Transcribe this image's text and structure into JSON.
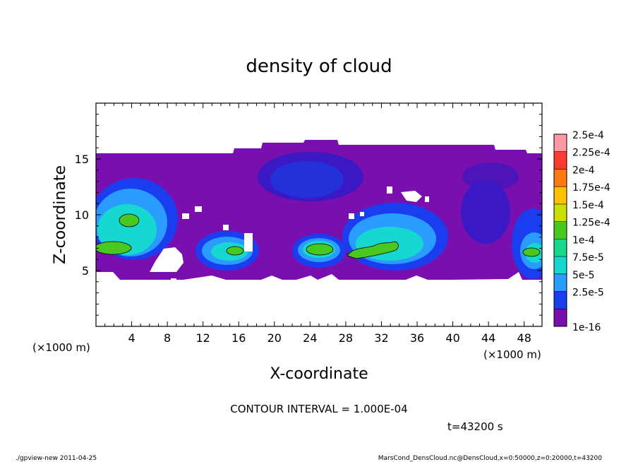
{
  "chart_data": {
    "type": "heatmap",
    "title": "density of cloud",
    "xlabel": "X-coordinate",
    "ylabel": "Z-coordinate",
    "x_unit": "(×1000 m)",
    "y_unit": "(×1000 m)",
    "xlim": [
      0,
      50
    ],
    "ylim": [
      0,
      20
    ],
    "x_ticks": [
      4,
      8,
      12,
      16,
      20,
      24,
      28,
      32,
      36,
      40,
      44,
      48
    ],
    "y_ticks": [
      5,
      10,
      15
    ],
    "colorbar": {
      "levels": [
        "2.5e-4",
        "2.25e-4",
        "2e-4",
        "1.75e-4",
        "1.5e-4",
        "1.25e-4",
        "1e-4",
        "7.5e-5",
        "5e-5",
        "2.5e-5",
        "1e-16"
      ],
      "colors": [
        "#ff9aa5",
        "#ff3b2e",
        "#ff7a10",
        "#ffc000",
        "#c8e000",
        "#49c820",
        "#18d88a",
        "#16d8d0",
        "#2a9cff",
        "#1a3df0",
        "#7a0fb0"
      ]
    },
    "contour_interval": "CONTOUR INTERVAL = 1.000E-04",
    "time_label": "t=43200 s",
    "cloud_region": {
      "base_z": 4.3,
      "top_z": 15.5,
      "domain_top_z_near_x_25": 16.3
    },
    "high_density_patches_1e-4": [
      {
        "x_center": 1.8,
        "z_center": 7.0
      },
      {
        "x_center": 3.5,
        "z_center": 9.8
      },
      {
        "x_center": 16.0,
        "z_center": 6.6
      },
      {
        "x_center": 25.0,
        "z_center": 7.2
      },
      {
        "x_center": 32.0,
        "z_center": 6.6
      },
      {
        "x_center": 48.8,
        "z_center": 6.7
      }
    ]
  },
  "footer": {
    "left": "./gpview-new   2011-04-25",
    "right": "MarsCond_DensCloud.nc@DensCloud,x=0:50000,z=0:20000,t=43200"
  }
}
